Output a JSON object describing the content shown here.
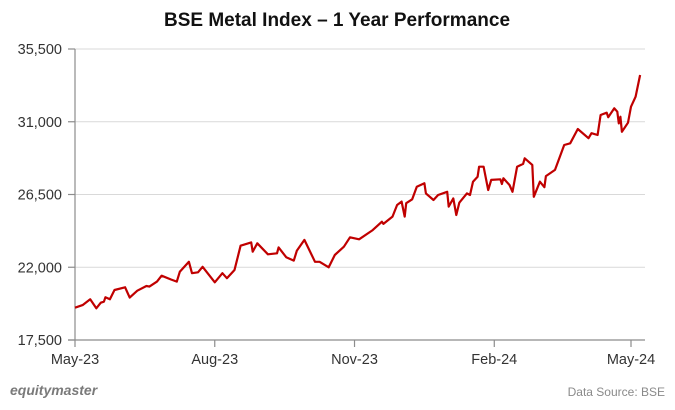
{
  "chart_data": {
    "type": "line",
    "title": "BSE Metal Index – 1 Year Performance",
    "xlabel": "",
    "ylabel": "",
    "ylim": [
      17500,
      35500
    ],
    "y_ticks": [
      "17,500",
      "22,000",
      "26,500",
      "31,000",
      "35,500"
    ],
    "y_tick_values": [
      17500,
      22000,
      26500,
      31000,
      35500
    ],
    "x_ticks": [
      "May-23",
      "Aug-23",
      "Nov-23",
      "Feb-24",
      "May-24"
    ],
    "x_tick_dates": [
      "2023-05-01",
      "2023-08-01",
      "2023-11-01",
      "2024-02-01",
      "2024-05-01"
    ],
    "grid": "horizontal",
    "line_color": "#c00000",
    "series": [
      {
        "x": [
          "2023-05-01",
          "2023-05-06",
          "2023-05-11",
          "2023-05-15",
          "2023-05-18",
          "2023-05-20",
          "2023-05-21",
          "2023-05-24",
          "2023-05-27",
          "2023-06-03",
          "2023-06-06",
          "2023-06-11",
          "2023-06-17",
          "2023-06-19",
          "2023-06-24",
          "2023-06-27",
          "2023-07-03",
          "2023-07-07",
          "2023-07-09",
          "2023-07-15",
          "2023-07-17",
          "2023-07-21",
          "2023-07-24",
          "2023-08-01",
          "2023-08-06",
          "2023-08-09",
          "2023-08-14",
          "2023-08-18",
          "2023-08-25",
          "2023-08-26",
          "2023-08-29",
          "2023-09-05",
          "2023-09-11",
          "2023-09-12",
          "2023-09-17",
          "2023-09-22",
          "2023-09-24",
          "2023-09-29",
          "2023-10-06",
          "2023-10-09",
          "2023-10-15",
          "2023-10-19",
          "2023-10-25",
          "2023-10-29",
          "2023-11-04",
          "2023-11-13",
          "2023-11-19",
          "2023-11-20",
          "2023-11-26",
          "2023-11-29",
          "2023-12-02",
          "2023-12-04",
          "2023-12-05",
          "2023-12-09",
          "2023-12-12",
          "2023-12-17",
          "2023-12-18",
          "2023-12-23",
          "2023-12-26",
          "2024-01-01",
          "2024-01-02",
          "2024-01-05",
          "2024-01-07",
          "2024-01-09",
          "2024-01-14",
          "2024-01-16",
          "2024-01-18",
          "2024-01-21",
          "2024-01-22",
          "2024-01-25",
          "2024-01-28",
          "2024-01-30",
          "2024-02-05",
          "2024-02-06",
          "2024-02-07",
          "2024-02-11",
          "2024-02-13",
          "2024-02-16",
          "2024-02-20",
          "2024-02-21",
          "2024-02-26",
          "2024-02-27",
          "2024-03-02",
          "2024-03-05",
          "2024-03-06",
          "2024-03-12",
          "2024-03-18",
          "2024-03-22",
          "2024-03-27",
          "2024-04-03",
          "2024-04-05",
          "2024-04-09",
          "2024-04-11",
          "2024-04-15",
          "2024-04-16",
          "2024-04-20",
          "2024-04-22",
          "2024-04-23",
          "2024-04-24",
          "2024-04-25",
          "2024-04-29",
          "2024-05-01",
          "2024-05-04",
          "2024-05-07"
        ],
        "y": [
          19500,
          19660,
          20020,
          19460,
          19810,
          19870,
          20140,
          20020,
          20590,
          20760,
          20120,
          20550,
          20840,
          20800,
          21110,
          21480,
          21250,
          21110,
          21720,
          22340,
          21630,
          21690,
          22030,
          21070,
          21630,
          21320,
          21830,
          23330,
          23540,
          22960,
          23480,
          22800,
          22860,
          23230,
          22620,
          22410,
          23020,
          23690,
          22340,
          22340,
          22000,
          22760,
          23270,
          23850,
          23730,
          24300,
          24820,
          24680,
          25130,
          25850,
          26060,
          25130,
          25960,
          26200,
          26980,
          27190,
          26570,
          26160,
          26470,
          26670,
          25750,
          26260,
          25230,
          25990,
          26570,
          26470,
          27290,
          27600,
          28220,
          28220,
          26780,
          27400,
          27440,
          27150,
          27500,
          27090,
          26670,
          28220,
          28390,
          28740,
          28330,
          26360,
          27290,
          26950,
          27640,
          28020,
          29560,
          29670,
          30550,
          29980,
          30290,
          30180,
          31420,
          31560,
          31280,
          31830,
          31620,
          30900,
          31310,
          30380,
          30940,
          31930,
          32550,
          33890
        ]
      }
    ]
  },
  "footer": {
    "brand": "equitymaster",
    "source": "Data Source: BSE"
  }
}
